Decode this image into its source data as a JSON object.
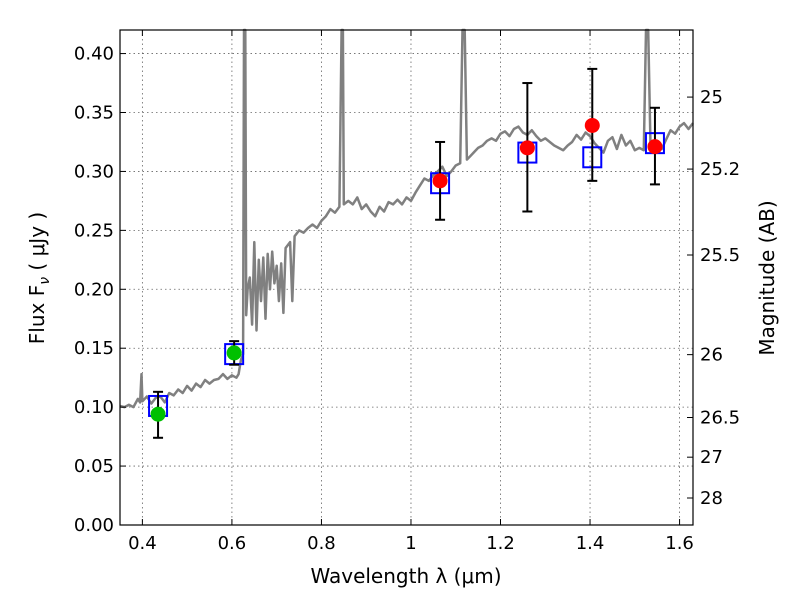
{
  "chart_data": {
    "type": "scatter",
    "xlabel": "Wavelength  λ (μm)",
    "ylabel": "Flux  F",
    "ylabel_sub": "ν",
    "ylabel_unit": "  ( μJy )",
    "y2label": "Magnitude (AB)",
    "xlim": [
      0.35,
      1.63
    ],
    "ylim": [
      0.0,
      0.42
    ],
    "x_ticks": [
      0.4,
      0.6,
      0.8,
      1.0,
      1.2,
      1.4,
      1.6
    ],
    "x_tick_labels": [
      "0.4",
      "0.6",
      "0.8",
      "1",
      "1.2",
      "1.4",
      "1.6"
    ],
    "y_ticks": [
      0.0,
      0.05,
      0.1,
      0.15,
      0.2,
      0.25,
      0.3,
      0.35,
      0.4
    ],
    "y_tick_labels": [
      "0.00",
      "0.05",
      "0.10",
      "0.15",
      "0.20",
      "0.25",
      "0.30",
      "0.35",
      "0.40"
    ],
    "mag_ticks": [
      25,
      25.2,
      25.5,
      26,
      26.5,
      27,
      28
    ],
    "mag_tick_labels": [
      "25",
      "25.2",
      "25.5",
      "26",
      "26.5",
      "27",
      "28"
    ],
    "grid": true,
    "colors": {
      "spectrum": "#808080",
      "model_box": "#0000ff",
      "observed_optical": "#00c000",
      "observed_nir": "#ff0000",
      "errorbar": "#000000"
    },
    "model_boxes": [
      {
        "x": 0.435,
        "y": 0.101
      },
      {
        "x": 0.605,
        "y": 0.145
      },
      {
        "x": 1.065,
        "y": 0.29
      },
      {
        "x": 1.26,
        "y": 0.316
      },
      {
        "x": 1.405,
        "y": 0.312
      },
      {
        "x": 1.545,
        "y": 0.324
      }
    ],
    "observations": [
      {
        "x": 0.435,
        "y": 0.094,
        "yerr_low": 0.02,
        "yerr_high": 0.019,
        "band": "optical"
      },
      {
        "x": 0.605,
        "y": 0.146,
        "yerr_low": 0.01,
        "yerr_high": 0.01,
        "band": "optical"
      },
      {
        "x": 1.065,
        "y": 0.292,
        "yerr_low": 0.033,
        "yerr_high": 0.033,
        "band": "nir"
      },
      {
        "x": 1.26,
        "y": 0.32,
        "yerr_low": 0.054,
        "yerr_high": 0.055,
        "band": "nir"
      },
      {
        "x": 1.405,
        "y": 0.339,
        "yerr_low": 0.047,
        "yerr_high": 0.048,
        "band": "nir"
      },
      {
        "x": 1.545,
        "y": 0.321,
        "yerr_low": 0.032,
        "yerr_high": 0.033,
        "band": "nir"
      }
    ],
    "spectrum": [
      [
        0.35,
        0.101
      ],
      [
        0.36,
        0.1
      ],
      [
        0.37,
        0.102
      ],
      [
        0.38,
        0.1
      ],
      [
        0.39,
        0.107
      ],
      [
        0.395,
        0.104
      ],
      [
        0.398,
        0.128
      ],
      [
        0.4,
        0.105
      ],
      [
        0.41,
        0.109
      ],
      [
        0.42,
        0.103
      ],
      [
        0.43,
        0.108
      ],
      [
        0.44,
        0.109
      ],
      [
        0.45,
        0.104
      ],
      [
        0.46,
        0.112
      ],
      [
        0.47,
        0.11
      ],
      [
        0.48,
        0.115
      ],
      [
        0.49,
        0.112
      ],
      [
        0.5,
        0.118
      ],
      [
        0.51,
        0.114
      ],
      [
        0.52,
        0.12
      ],
      [
        0.53,
        0.117
      ],
      [
        0.54,
        0.123
      ],
      [
        0.55,
        0.12
      ],
      [
        0.56,
        0.123
      ],
      [
        0.57,
        0.124
      ],
      [
        0.58,
        0.128
      ],
      [
        0.59,
        0.124
      ],
      [
        0.6,
        0.127
      ],
      [
        0.61,
        0.125
      ],
      [
        0.615,
        0.128
      ],
      [
        0.62,
        0.14
      ],
      [
        0.625,
        0.145
      ],
      [
        0.627,
        0.42
      ],
      [
        0.628,
        0.42
      ],
      [
        0.63,
        0.42
      ],
      [
        0.632,
        0.178
      ],
      [
        0.635,
        0.2
      ],
      [
        0.64,
        0.21
      ],
      [
        0.645,
        0.17
      ],
      [
        0.65,
        0.24
      ],
      [
        0.655,
        0.165
      ],
      [
        0.66,
        0.225
      ],
      [
        0.665,
        0.19
      ],
      [
        0.67,
        0.227
      ],
      [
        0.675,
        0.175
      ],
      [
        0.68,
        0.23
      ],
      [
        0.685,
        0.2
      ],
      [
        0.69,
        0.232
      ],
      [
        0.695,
        0.205
      ],
      [
        0.7,
        0.22
      ],
      [
        0.705,
        0.19
      ],
      [
        0.71,
        0.222
      ],
      [
        0.715,
        0.18
      ],
      [
        0.72,
        0.235
      ],
      [
        0.73,
        0.24
      ],
      [
        0.735,
        0.19
      ],
      [
        0.74,
        0.245
      ],
      [
        0.75,
        0.25
      ],
      [
        0.76,
        0.248
      ],
      [
        0.77,
        0.252
      ],
      [
        0.78,
        0.255
      ],
      [
        0.79,
        0.252
      ],
      [
        0.8,
        0.258
      ],
      [
        0.81,
        0.262
      ],
      [
        0.82,
        0.268
      ],
      [
        0.83,
        0.265
      ],
      [
        0.84,
        0.27
      ],
      [
        0.845,
        0.42
      ],
      [
        0.848,
        0.42
      ],
      [
        0.85,
        0.272
      ],
      [
        0.86,
        0.275
      ],
      [
        0.87,
        0.272
      ],
      [
        0.88,
        0.278
      ],
      [
        0.89,
        0.268
      ],
      [
        0.9,
        0.272
      ],
      [
        0.91,
        0.266
      ],
      [
        0.92,
        0.262
      ],
      [
        0.93,
        0.27
      ],
      [
        0.94,
        0.266
      ],
      [
        0.95,
        0.274
      ],
      [
        0.96,
        0.272
      ],
      [
        0.97,
        0.276
      ],
      [
        0.98,
        0.272
      ],
      [
        0.99,
        0.278
      ],
      [
        1.0,
        0.275
      ],
      [
        1.01,
        0.282
      ],
      [
        1.02,
        0.288
      ],
      [
        1.03,
        0.294
      ],
      [
        1.04,
        0.292
      ],
      [
        1.05,
        0.297
      ],
      [
        1.06,
        0.3
      ],
      [
        1.07,
        0.304
      ],
      [
        1.08,
        0.296
      ],
      [
        1.09,
        0.3
      ],
      [
        1.1,
        0.305
      ],
      [
        1.11,
        0.307
      ],
      [
        1.115,
        0.42
      ],
      [
        1.12,
        0.42
      ],
      [
        1.125,
        0.31
      ],
      [
        1.13,
        0.312
      ],
      [
        1.14,
        0.316
      ],
      [
        1.15,
        0.32
      ],
      [
        1.16,
        0.322
      ],
      [
        1.17,
        0.326
      ],
      [
        1.18,
        0.328
      ],
      [
        1.19,
        0.326
      ],
      [
        1.2,
        0.332
      ],
      [
        1.21,
        0.334
      ],
      [
        1.22,
        0.33
      ],
      [
        1.23,
        0.336
      ],
      [
        1.24,
        0.338
      ],
      [
        1.25,
        0.333
      ],
      [
        1.26,
        0.331
      ],
      [
        1.27,
        0.335
      ],
      [
        1.28,
        0.33
      ],
      [
        1.29,
        0.326
      ],
      [
        1.3,
        0.328
      ],
      [
        1.31,
        0.325
      ],
      [
        1.32,
        0.322
      ],
      [
        1.33,
        0.32
      ],
      [
        1.34,
        0.318
      ],
      [
        1.35,
        0.322
      ],
      [
        1.36,
        0.325
      ],
      [
        1.37,
        0.331
      ],
      [
        1.38,
        0.327
      ],
      [
        1.39,
        0.333
      ],
      [
        1.4,
        0.33
      ],
      [
        1.41,
        0.324
      ],
      [
        1.42,
        0.32
      ],
      [
        1.43,
        0.316
      ],
      [
        1.44,
        0.326
      ],
      [
        1.45,
        0.329
      ],
      [
        1.46,
        0.319
      ],
      [
        1.47,
        0.331
      ],
      [
        1.48,
        0.322
      ],
      [
        1.49,
        0.326
      ],
      [
        1.5,
        0.318
      ],
      [
        1.51,
        0.32
      ],
      [
        1.52,
        0.318
      ],
      [
        1.525,
        0.42
      ],
      [
        1.53,
        0.42
      ],
      [
        1.535,
        0.322
      ],
      [
        1.54,
        0.32
      ],
      [
        1.55,
        0.322
      ],
      [
        1.56,
        0.319
      ],
      [
        1.57,
        0.327
      ],
      [
        1.58,
        0.335
      ],
      [
        1.59,
        0.332
      ],
      [
        1.6,
        0.338
      ],
      [
        1.61,
        0.341
      ],
      [
        1.62,
        0.336
      ],
      [
        1.63,
        0.341
      ]
    ]
  }
}
